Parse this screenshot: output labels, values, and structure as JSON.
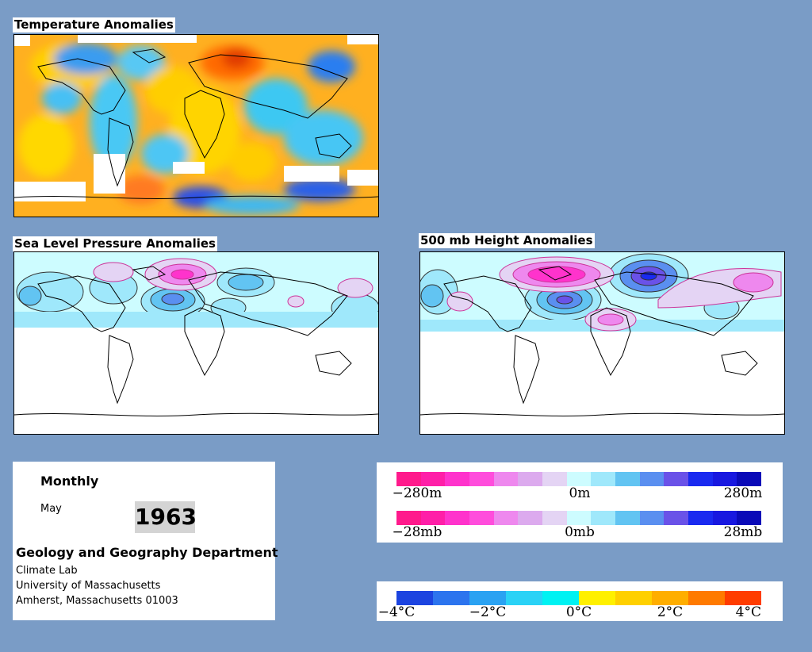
{
  "maps": {
    "temperature": {
      "title": "Temperature Anomalies"
    },
    "slp": {
      "title": "Sea Level Pressure Anomalies"
    },
    "height": {
      "title": "500 mb Height Anomalies"
    }
  },
  "info": {
    "frequency": "Monthly",
    "month": "May",
    "year": "1963",
    "department": "Geology and Geography Department",
    "lines": [
      "Climate Lab",
      "University of Massachusetts",
      "Amherst, Massachusetts 01003"
    ]
  },
  "legends": {
    "height_labels": [
      "−280m",
      "0m",
      "280m"
    ],
    "pressure_labels": [
      "−28mb",
      "0mb",
      "28mb"
    ],
    "temp_labels": [
      "−4°C",
      "−2°C",
      "0°C",
      "2°C",
      "4°C"
    ],
    "anomaly_colors": [
      "#ff1a8c",
      "#ff1fa8",
      "#ff33cc",
      "#ff4ddc",
      "#ee88ee",
      "#dcaaee",
      "#e4d4f4",
      "#cdfcff",
      "#9fe8fb",
      "#62c4f2",
      "#5a8ff0",
      "#6a52e8",
      "#1a2af0",
      "#1818e0",
      "#0a0ab8"
    ],
    "temp_colors": [
      "#1c44e0",
      "#2c74ee",
      "#2aa2f2",
      "#2ad2f6",
      "#00f2f2",
      "#fff000",
      "#ffd000",
      "#ffae00",
      "#ff7a00",
      "#ff3c00"
    ]
  }
}
